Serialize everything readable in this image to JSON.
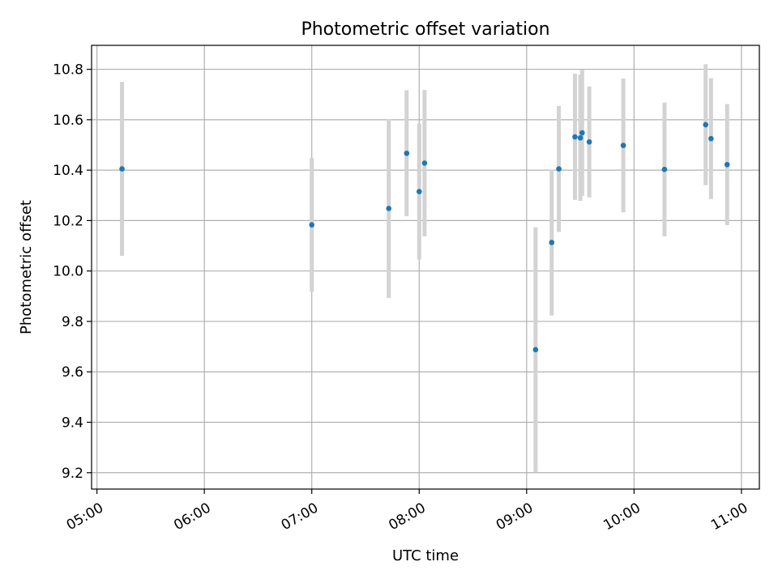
{
  "chart_data": {
    "type": "scatter",
    "title": "Photometric offset variation",
    "xlabel": "UTC time",
    "ylabel": "Photometric offset",
    "xlim": [
      "04:57",
      "11:10"
    ],
    "ylim": [
      9.135,
      10.895
    ],
    "grid": true,
    "x_ticks": [
      "05:00",
      "06:00",
      "07:00",
      "08:00",
      "09:00",
      "10:00",
      "11:00"
    ],
    "y_ticks": [
      9.2,
      9.4,
      9.6,
      9.8,
      10.0,
      10.2,
      10.4,
      10.6,
      10.8
    ],
    "y_tick_labels": [
      "9.2",
      "9.4",
      "9.6",
      "9.8",
      "10.0",
      "10.2",
      "10.4",
      "10.6",
      "10.8"
    ],
    "marker_color": "#1f77b4",
    "errorbar_color": "#d3d3d3",
    "points": [
      {
        "x": "05:14",
        "y": 10.405,
        "err": 0.345
      },
      {
        "x": "07:00",
        "y": 10.183,
        "err": 0.265
      },
      {
        "x": "07:43",
        "y": 10.248,
        "err": 0.355
      },
      {
        "x": "07:53",
        "y": 10.467,
        "err": 0.25
      },
      {
        "x": "08:00",
        "y": 10.315,
        "err": 0.27
      },
      {
        "x": "08:03",
        "y": 10.428,
        "err": 0.29
      },
      {
        "x": "09:05",
        "y": 9.688,
        "err": 0.485
      },
      {
        "x": "09:14",
        "y": 10.113,
        "err": 0.29
      },
      {
        "x": "09:18",
        "y": 10.405,
        "err": 0.25
      },
      {
        "x": "09:27",
        "y": 10.532,
        "err": 0.25
      },
      {
        "x": "09:30",
        "y": 10.528,
        "err": 0.25
      },
      {
        "x": "09:31",
        "y": 10.548,
        "err": 0.25
      },
      {
        "x": "09:35",
        "y": 10.512,
        "err": 0.22
      },
      {
        "x": "09:54",
        "y": 10.498,
        "err": 0.265
      },
      {
        "x": "10:17",
        "y": 10.403,
        "err": 0.265
      },
      {
        "x": "10:40",
        "y": 10.58,
        "err": 0.24
      },
      {
        "x": "10:43",
        "y": 10.525,
        "err": 0.24
      },
      {
        "x": "10:52",
        "y": 10.422,
        "err": 0.24
      }
    ]
  }
}
